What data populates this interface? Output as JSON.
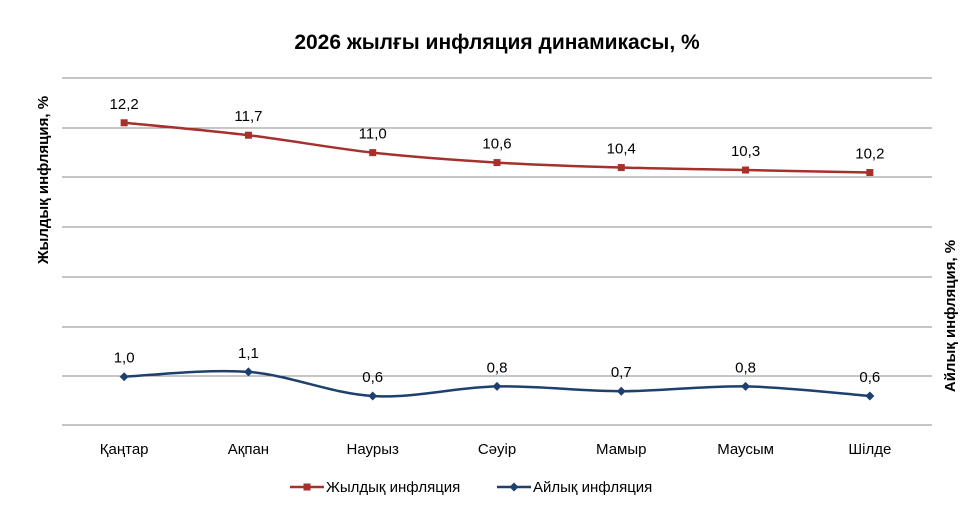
{
  "chart_data": {
    "type": "line",
    "title": "2026 жылғы инфляция динамикасы, %",
    "ylabel_left": "Жылдық инфляция, %",
    "ylabel_right": "Айлық инфляция, %",
    "categories": [
      "Қаңтар",
      "Ақпан",
      "Наурыз",
      "Сәуір",
      "Мамыр",
      "Маусым",
      "Шілде"
    ],
    "series": [
      {
        "name": "Жылдық инфляция",
        "axis": "left",
        "color": "#a6302c",
        "marker": "square",
        "values": [
          12.2,
          11.7,
          11.0,
          10.6,
          10.4,
          10.3,
          10.2
        ],
        "labels": [
          "12,2",
          "11,7",
          "11,0",
          "10,6",
          "10,4",
          "10,3",
          "10,2"
        ]
      },
      {
        "name": "Айлық инфляция",
        "axis": "right",
        "color": "#1f3f6e",
        "marker": "diamond",
        "values": [
          1.0,
          1.1,
          0.6,
          0.8,
          0.7,
          0.8,
          0.6
        ],
        "labels": [
          "1,0",
          "1,1",
          "0,6",
          "0,8",
          "0,7",
          "0,8",
          "0,6"
        ]
      }
    ],
    "grid": true,
    "legend_position": "bottom"
  }
}
